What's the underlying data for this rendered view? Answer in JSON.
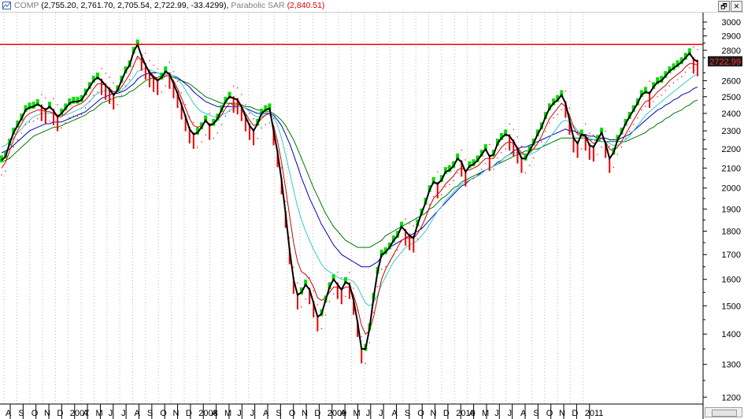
{
  "window": {
    "title_symbol": "COMP",
    "title_ohlc": "(2,755.20, 2,761.70, 2,705.54, 2,722.99, -33.4299),",
    "title_indicator": "Parabolic SAR",
    "title_indicator_value": "(2,840.51)",
    "restore_label": "🗗",
    "close_label": "✕"
  },
  "chart_data": {
    "type": "line",
    "title": "COMP (2,755.20, 2,761.70, 2,705.54, 2,722.99, -33.4299), Parabolic SAR (2,840.51)",
    "current_price_label": "2722.99",
    "horizontal_line_value": 2840.51,
    "y_ticks": [
      3000,
      2900,
      2800,
      2600,
      2500,
      2400,
      2300,
      2200,
      2100,
      2000,
      1900,
      1800,
      1700,
      1600,
      1500,
      1400,
      1300,
      1200
    ],
    "x_labels": [
      "A",
      "S",
      "O",
      "N",
      "D",
      "2007",
      "A",
      "M",
      "J",
      "J",
      "A",
      "S",
      "O",
      "N",
      "D",
      "2008",
      "A",
      "M",
      "J",
      "J",
      "A",
      "S",
      "O",
      "N",
      "D",
      "2009",
      "A",
      "M",
      "J",
      "J",
      "A",
      "S",
      "O",
      "N",
      "D",
      "2010",
      "A",
      "M",
      "J",
      "J",
      "A",
      "S",
      "O",
      "N",
      "D",
      "2011"
    ],
    "ylim": [
      1180,
      3070
    ],
    "y_scale": "log",
    "grid": "vertical dotted",
    "colors": {
      "price": "#000000",
      "up_bars": "#00dd00",
      "down_bars": "#ee0000",
      "sar_line": "#ee0000",
      "ma_red": "#cc0000",
      "ma_cyan": "#33cccc",
      "ma_blue": "#0000bb",
      "ma_green": "#007700"
    },
    "series": [
      {
        "values": [
          2140,
          2160,
          2230,
          2290,
          2330,
          2370,
          2420,
          2435,
          2440,
          2455,
          2440,
          2420,
          2440,
          2415,
          2380,
          2400,
          2430,
          2460,
          2470,
          2470,
          2480,
          2520,
          2560,
          2600,
          2620,
          2600,
          2570,
          2545,
          2510,
          2540,
          2600,
          2660,
          2700,
          2790,
          2840,
          2760,
          2700,
          2650,
          2620,
          2600,
          2620,
          2660,
          2640,
          2580,
          2520,
          2450,
          2380,
          2310,
          2280,
          2290,
          2320,
          2360,
          2330,
          2340,
          2370,
          2420,
          2470,
          2500,
          2490,
          2480,
          2440,
          2380,
          2330,
          2300,
          2340,
          2400,
          2420,
          2430,
          2300,
          2180,
          2040,
          1880,
          1720,
          1600,
          1540,
          1550,
          1580,
          1560,
          1510,
          1460,
          1470,
          1520,
          1570,
          1600,
          1580,
          1560,
          1590,
          1580,
          1520,
          1440,
          1350,
          1350,
          1420,
          1530,
          1630,
          1700,
          1710,
          1730,
          1760,
          1780,
          1820,
          1800,
          1780,
          1770,
          1830,
          1880,
          1930,
          1990,
          2030,
          2020,
          2040,
          2080,
          2090,
          2110,
          2150,
          2130,
          2080,
          2110,
          2120,
          2140,
          2170,
          2200,
          2160,
          2170,
          2230,
          2260,
          2280,
          2270,
          2240,
          2200,
          2150,
          2150,
          2190,
          2230,
          2280,
          2320,
          2380,
          2430,
          2460,
          2480,
          2510,
          2460,
          2360,
          2260,
          2230,
          2280,
          2270,
          2220,
          2210,
          2250,
          2290,
          2230,
          2150,
          2180,
          2250,
          2290,
          2340,
          2380,
          2420,
          2460,
          2510,
          2530,
          2520,
          2560,
          2590,
          2600,
          2630,
          2660,
          2680,
          2700,
          2720,
          2750,
          2780,
          2740,
          2723
        ]
      },
      {
        "values": [
          2100,
          2130,
          2190,
          2250,
          2300,
          2340,
          2380,
          2400,
          2410,
          2420,
          2420,
          2410,
          2410,
          2400,
          2380,
          2380,
          2400,
          2420,
          2440,
          2450,
          2460,
          2480,
          2510,
          2550,
          2580,
          2580,
          2570,
          2550,
          2530,
          2530,
          2560,
          2600,
          2640,
          2700,
          2760,
          2730,
          2700,
          2660,
          2630,
          2610,
          2610,
          2630,
          2630,
          2600,
          2550,
          2490,
          2430,
          2370,
          2330,
          2320,
          2330,
          2350,
          2340,
          2340,
          2360,
          2390,
          2430,
          2460,
          2460,
          2460,
          2440,
          2400,
          2360,
          2330,
          2340,
          2370,
          2390,
          2400,
          2330,
          2240,
          2130,
          2000,
          1870,
          1750,
          1670,
          1630,
          1620,
          1600,
          1570,
          1530,
          1520,
          1530,
          1550,
          1570,
          1570,
          1560,
          1570,
          1570,
          1540,
          1490,
          1430,
          1400,
          1410,
          1460,
          1530,
          1600,
          1640,
          1670,
          1700,
          1730,
          1760,
          1770,
          1770,
          1770,
          1790,
          1820,
          1860,
          1910,
          1950,
          1970,
          1990,
          2020,
          2040,
          2060,
          2090,
          2100,
          2090,
          2090,
          2100,
          2110,
          2130,
          2150,
          2150,
          2150,
          2180,
          2210,
          2230,
          2240,
          2230,
          2210,
          2180,
          2170,
          2180,
          2200,
          2230,
          2270,
          2320,
          2370,
          2400,
          2430,
          2460,
          2440,
          2390,
          2320,
          2280,
          2270,
          2270,
          2250,
          2230,
          2240,
          2260,
          2240,
          2200,
          2190,
          2210,
          2240,
          2280,
          2320,
          2360,
          2400,
          2440,
          2470,
          2480,
          2500,
          2530,
          2550,
          2570,
          2600,
          2620,
          2640,
          2660,
          2690,
          2710,
          2710,
          2700
        ]
      },
      {
        "values": [
          2210,
          2220,
          2240,
          2260,
          2290,
          2310,
          2340,
          2360,
          2380,
          2390,
          2400,
          2400,
          2400,
          2400,
          2390,
          2390,
          2390,
          2400,
          2410,
          2420,
          2430,
          2450,
          2470,
          2500,
          2520,
          2530,
          2540,
          2540,
          2530,
          2530,
          2540,
          2560,
          2590,
          2620,
          2660,
          2670,
          2680,
          2670,
          2660,
          2650,
          2640,
          2640,
          2640,
          2630,
          2610,
          2580,
          2540,
          2500,
          2460,
          2430,
          2410,
          2400,
          2390,
          2380,
          2380,
          2390,
          2400,
          2420,
          2430,
          2440,
          2440,
          2430,
          2410,
          2390,
          2380,
          2380,
          2390,
          2400,
          2380,
          2330,
          2260,
          2170,
          2080,
          1990,
          1910,
          1850,
          1800,
          1760,
          1720,
          1690,
          1660,
          1640,
          1630,
          1620,
          1610,
          1600,
          1600,
          1600,
          1590,
          1570,
          1540,
          1510,
          1500,
          1510,
          1540,
          1580,
          1610,
          1640,
          1670,
          1690,
          1710,
          1730,
          1740,
          1750,
          1760,
          1780,
          1800,
          1830,
          1860,
          1890,
          1910,
          1940,
          1960,
          1980,
          2000,
          2020,
          2030,
          2040,
          2050,
          2060,
          2070,
          2090,
          2100,
          2110,
          2120,
          2140,
          2160,
          2170,
          2180,
          2180,
          2170,
          2170,
          2170,
          2180,
          2190,
          2210,
          2230,
          2260,
          2290,
          2320,
          2350,
          2360,
          2350,
          2330,
          2300,
          2280,
          2270,
          2260,
          2250,
          2240,
          2240,
          2240,
          2230,
          2220,
          2220,
          2230,
          2250,
          2270,
          2300,
          2330,
          2360,
          2390,
          2410,
          2430,
          2450,
          2470,
          2490,
          2510,
          2530,
          2550,
          2570,
          2590,
          2610,
          2630,
          2640
        ]
      },
      {
        "values": [
          2180,
          2190,
          2200,
          2220,
          2240,
          2260,
          2280,
          2300,
          2310,
          2320,
          2330,
          2340,
          2340,
          2350,
          2350,
          2350,
          2360,
          2370,
          2380,
          2390,
          2400,
          2410,
          2430,
          2450,
          2470,
          2490,
          2500,
          2510,
          2520,
          2520,
          2530,
          2540,
          2560,
          2580,
          2610,
          2630,
          2640,
          2650,
          2650,
          2650,
          2640,
          2640,
          2640,
          2630,
          2620,
          2600,
          2580,
          2560,
          2530,
          2510,
          2490,
          2470,
          2460,
          2450,
          2440,
          2440,
          2440,
          2440,
          2440,
          2440,
          2440,
          2430,
          2420,
          2410,
          2400,
          2400,
          2400,
          2400,
          2390,
          2360,
          2330,
          2280,
          2230,
          2170,
          2110,
          2050,
          2000,
          1950,
          1910,
          1870,
          1830,
          1800,
          1770,
          1740,
          1720,
          1700,
          1690,
          1680,
          1670,
          1660,
          1650,
          1650,
          1650,
          1660,
          1670,
          1690,
          1710,
          1730,
          1740,
          1750,
          1760,
          1770,
          1780,
          1790,
          1800,
          1810,
          1830,
          1850,
          1870,
          1890,
          1910,
          1930,
          1950,
          1970,
          1990,
          2010,
          2020,
          2040,
          2050,
          2060,
          2080,
          2090,
          2100,
          2110,
          2130,
          2140,
          2160,
          2170,
          2190,
          2200,
          2210,
          2210,
          2220,
          2230,
          2240,
          2250,
          2260,
          2270,
          2280,
          2290,
          2300,
          2310,
          2300,
          2300,
          2290,
          2280,
          2280,
          2270,
          2270,
          2260,
          2260,
          2260,
          2250,
          2250,
          2250,
          2260,
          2270,
          2280,
          2300,
          2320,
          2340,
          2360,
          2380,
          2400,
          2420,
          2430,
          2450,
          2460,
          2480,
          2490,
          2510,
          2520,
          2530,
          2550,
          2560
        ]
      },
      {
        "values": [
          2130,
          2140,
          2150,
          2170,
          2190,
          2210,
          2230,
          2250,
          2270,
          2280,
          2290,
          2300,
          2310,
          2320,
          2320,
          2330,
          2340,
          2350,
          2360,
          2370,
          2380,
          2390,
          2410,
          2420,
          2440,
          2460,
          2470,
          2480,
          2490,
          2500,
          2500,
          2510,
          2530,
          2540,
          2560,
          2580,
          2600,
          2610,
          2620,
          2620,
          2630,
          2630,
          2630,
          2620,
          2610,
          2600,
          2590,
          2580,
          2560,
          2540,
          2520,
          2500,
          2490,
          2480,
          2470,
          2460,
          2460,
          2460,
          2450,
          2450,
          2450,
          2440,
          2440,
          2430,
          2420,
          2420,
          2410,
          2410,
          2400,
          2380,
          2360,
          2330,
          2290,
          2250,
          2200,
          2150,
          2100,
          2050,
          2000,
          1960,
          1920,
          1880,
          1850,
          1820,
          1800,
          1780,
          1760,
          1750,
          1740,
          1730,
          1730,
          1730,
          1730,
          1740,
          1750,
          1760,
          1780,
          1790,
          1800,
          1810,
          1820,
          1830,
          1840,
          1850,
          1860,
          1870,
          1880,
          1900,
          1910,
          1930,
          1950,
          1960,
          1980,
          2000,
          2010,
          2030,
          2040,
          2050,
          2060,
          2070,
          2080,
          2090,
          2100,
          2110,
          2120,
          2130,
          2140,
          2150,
          2160,
          2170,
          2180,
          2190,
          2190,
          2200,
          2200,
          2210,
          2220,
          2230,
          2240,
          2250,
          2260,
          2260,
          2260,
          2260,
          2260,
          2260,
          2260,
          2250,
          2250,
          2250,
          2240,
          2240,
          2240,
          2240,
          2240,
          2240,
          2240,
          2250,
          2260,
          2270,
          2280,
          2290,
          2310,
          2320,
          2340,
          2350,
          2370,
          2380,
          2400,
          2410,
          2420,
          2440,
          2450,
          2470,
          2480
        ]
      }
    ]
  }
}
